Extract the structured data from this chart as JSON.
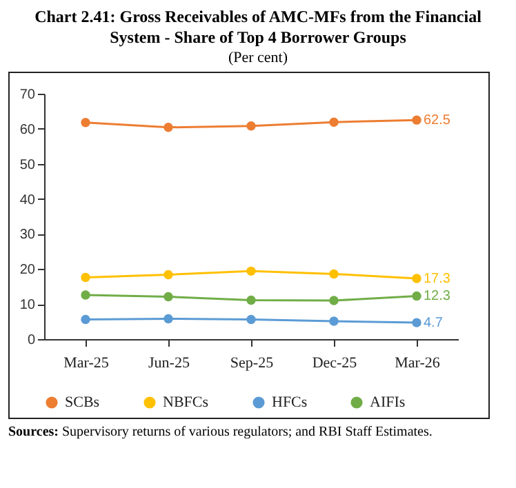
{
  "chart_data": {
    "type": "line",
    "title": "Chart 2.41: Gross Receivables of AMC-MFs from the Financial System - Share of Top 4 Borrower Groups",
    "subtitle": "(Per cent)",
    "categories": [
      "Mar-25",
      "Jun-25",
      "Sep-25",
      "Dec-25",
      "Mar-26"
    ],
    "series": [
      {
        "name": "SCBs",
        "color": "#ed7d31",
        "values": [
          61.8,
          60.4,
          60.8,
          61.9,
          62.5
        ],
        "value_labels": [
          null,
          null,
          null,
          null,
          "62.5"
        ]
      },
      {
        "name": "NBFCs",
        "color": "#ffc000",
        "values": [
          17.6,
          18.4,
          19.4,
          18.6,
          17.3
        ],
        "value_labels": [
          null,
          null,
          null,
          null,
          "17.3"
        ]
      },
      {
        "name": "HFCs",
        "color": "#5b9bd5",
        "values": [
          5.6,
          5.8,
          5.6,
          5.1,
          4.7
        ],
        "value_labels": [
          null,
          null,
          null,
          null,
          "4.7"
        ]
      },
      {
        "name": "AIFIs",
        "color": "#70ad47",
        "values": [
          12.6,
          12.1,
          11.1,
          11.0,
          12.3
        ],
        "value_labels": [
          null,
          null,
          null,
          null,
          "12.3"
        ]
      }
    ],
    "ylim": [
      0,
      70
    ],
    "yticks": [
      0,
      10,
      20,
      30,
      40,
      50,
      60,
      70
    ],
    "grid": false,
    "legend": "bottom",
    "marker": "circle",
    "line_style": "solid",
    "annotations": [
      "Sources: Supervisory returns of various regulators; and RBI Staff Estimates."
    ]
  }
}
